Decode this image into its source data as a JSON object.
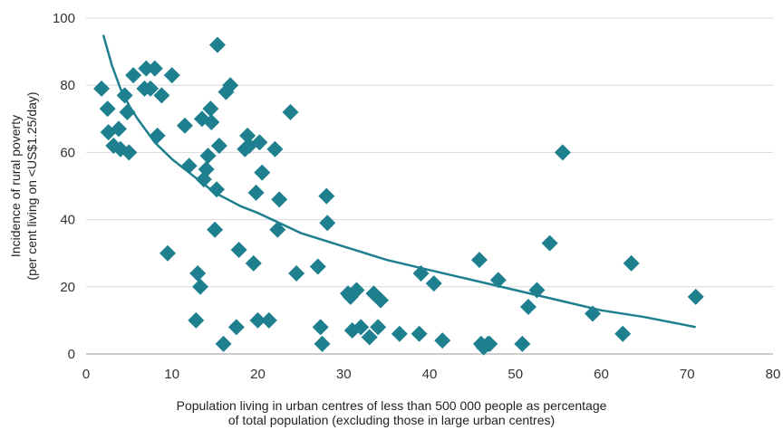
{
  "chart_data": {
    "type": "scatter",
    "title": "",
    "xlabel": "Population living in urban centres of less than 500 000 people as percentage",
    "xlabel_line2": "of total population (excluding those in large urban centres)",
    "ylabel": "Incidence of rural poverty",
    "ylabel_line2": "(per cent living on <US$1.25/day)",
    "xlim": [
      0,
      80
    ],
    "ylim": [
      0,
      100
    ],
    "x_ticks": [
      "0",
      "10",
      "20",
      "30",
      "40",
      "50",
      "60",
      "70",
      "80"
    ],
    "y_ticks": [
      "0",
      "20",
      "40",
      "60",
      "80",
      "100"
    ],
    "grid": "horizontal",
    "marker": "diamond",
    "colors": {
      "points": "#1e7f8f",
      "trend": "#1e7f8f",
      "grid": "#d9d9d9",
      "axis": "#999999"
    },
    "points": [
      [
        1.8,
        79
      ],
      [
        2.5,
        73
      ],
      [
        2.6,
        66
      ],
      [
        3.2,
        62
      ],
      [
        3.8,
        67
      ],
      [
        4.0,
        61
      ],
      [
        4.5,
        77
      ],
      [
        4.8,
        72
      ],
      [
        5.0,
        60
      ],
      [
        5.5,
        83
      ],
      [
        6.8,
        79
      ],
      [
        7.0,
        85
      ],
      [
        7.5,
        79
      ],
      [
        8.0,
        85
      ],
      [
        8.3,
        65
      ],
      [
        8.8,
        77
      ],
      [
        9.5,
        30
      ],
      [
        10.0,
        83
      ],
      [
        11.5,
        68
      ],
      [
        12.0,
        56
      ],
      [
        12.8,
        10
      ],
      [
        13.0,
        24
      ],
      [
        13.3,
        20
      ],
      [
        13.5,
        70
      ],
      [
        13.7,
        52
      ],
      [
        14.0,
        55
      ],
      [
        14.2,
        59
      ],
      [
        14.5,
        73
      ],
      [
        14.6,
        69
      ],
      [
        15.0,
        37
      ],
      [
        15.2,
        49
      ],
      [
        15.3,
        92
      ],
      [
        15.5,
        62
      ],
      [
        16.0,
        3
      ],
      [
        16.3,
        78
      ],
      [
        16.8,
        80
      ],
      [
        17.5,
        8
      ],
      [
        17.8,
        31
      ],
      [
        18.5,
        61
      ],
      [
        18.8,
        65
      ],
      [
        19.0,
        62
      ],
      [
        19.5,
        27
      ],
      [
        19.8,
        48
      ],
      [
        20.0,
        10
      ],
      [
        20.2,
        63
      ],
      [
        20.5,
        54
      ],
      [
        21.3,
        10
      ],
      [
        22.0,
        61
      ],
      [
        22.3,
        37
      ],
      [
        22.5,
        46
      ],
      [
        23.8,
        72
      ],
      [
        24.5,
        24
      ],
      [
        27.0,
        26
      ],
      [
        27.3,
        8
      ],
      [
        27.5,
        3
      ],
      [
        28.0,
        47
      ],
      [
        28.1,
        39
      ],
      [
        30.5,
        18
      ],
      [
        30.8,
        17
      ],
      [
        31.0,
        7
      ],
      [
        31.5,
        19
      ],
      [
        32.0,
        8
      ],
      [
        33.0,
        5
      ],
      [
        33.5,
        18
      ],
      [
        34.0,
        8
      ],
      [
        34.3,
        16
      ],
      [
        36.5,
        6
      ],
      [
        38.8,
        6
      ],
      [
        39.0,
        24
      ],
      [
        40.5,
        21
      ],
      [
        41.5,
        4
      ],
      [
        45.8,
        28
      ],
      [
        46.0,
        3
      ],
      [
        46.3,
        2
      ],
      [
        46.8,
        3
      ],
      [
        47.0,
        3
      ],
      [
        48.0,
        22
      ],
      [
        50.8,
        3
      ],
      [
        51.5,
        14
      ],
      [
        52.5,
        19
      ],
      [
        54.0,
        33
      ],
      [
        55.5,
        60
      ],
      [
        59.0,
        12
      ],
      [
        62.5,
        6
      ],
      [
        63.5,
        27
      ],
      [
        71.0,
        17
      ]
    ],
    "trend": {
      "type": "log",
      "x": [
        2,
        3,
        4,
        5,
        6,
        8,
        10,
        12,
        15,
        18,
        20,
        25,
        30,
        35,
        40,
        45,
        50,
        55,
        60,
        65,
        71
      ],
      "y": [
        95,
        86,
        79,
        74,
        70,
        63,
        58,
        54,
        48,
        44,
        42,
        36,
        32,
        28,
        25,
        22,
        19,
        16,
        13,
        11,
        8
      ]
    }
  }
}
